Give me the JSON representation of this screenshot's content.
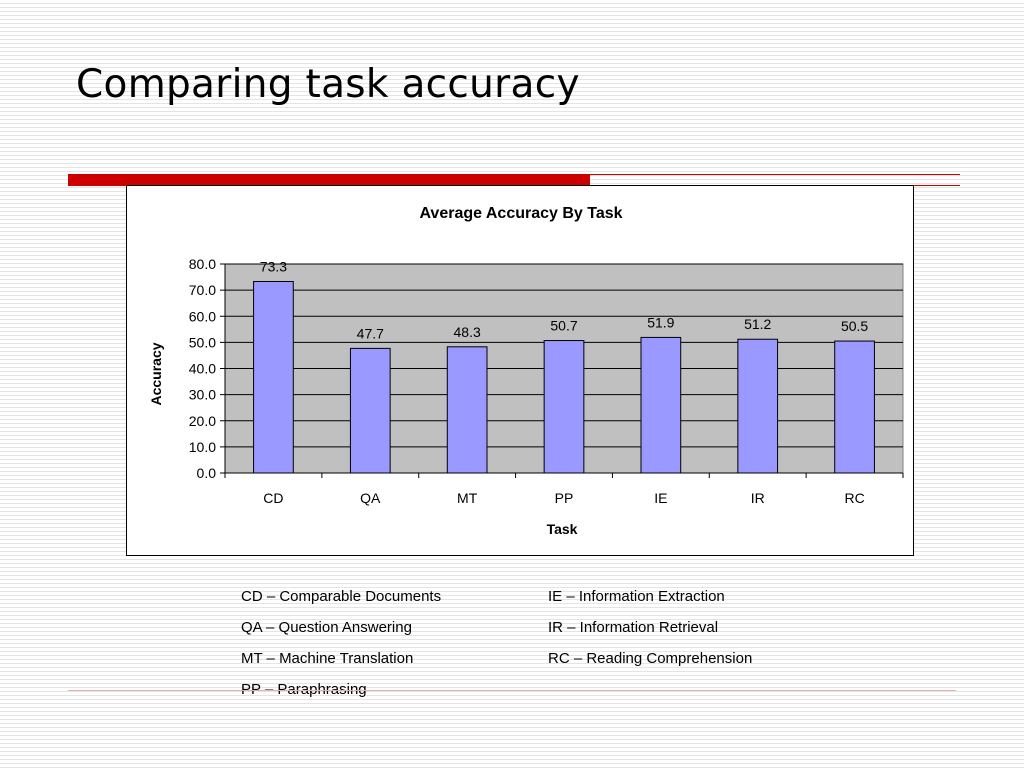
{
  "slide": {
    "title": "Comparing task accuracy"
  },
  "chart_data": {
    "type": "bar",
    "title": "Average Accuracy By Task",
    "xlabel": "Task",
    "ylabel": "Accuracy",
    "categories": [
      "CD",
      "QA",
      "MT",
      "PP",
      "IE",
      "IR",
      "RC"
    ],
    "values": [
      73.3,
      47.7,
      48.3,
      50.7,
      51.9,
      51.2,
      50.5
    ],
    "value_labels": [
      "73.3",
      "47.7",
      "48.3",
      "50.7",
      "51.9",
      "51.2",
      "50.5"
    ],
    "ylim": [
      0,
      80
    ],
    "yticks": [
      0,
      10,
      20,
      30,
      40,
      50,
      60,
      70,
      80
    ],
    "ytick_labels": [
      "0.0",
      "10.0",
      "20.0",
      "30.0",
      "40.0",
      "50.0",
      "60.0",
      "70.0",
      "80.0"
    ],
    "grid": true,
    "legend": "none",
    "colors": {
      "bar_fill": "#9999ff",
      "bar_stroke": "#000000",
      "plot_background": "#c0c0c0",
      "gridline": "#000000"
    }
  },
  "legend_notes": {
    "left": [
      "CD – Comparable Documents",
      "QA – Question Answering",
      "MT – Machine Translation",
      "PP – Paraphrasing"
    ],
    "right": [
      "IE – Information Extraction",
      "IR – Information Retrieval",
      "RC – Reading Comprehension"
    ]
  },
  "theme": {
    "accent": "#cc0000"
  }
}
